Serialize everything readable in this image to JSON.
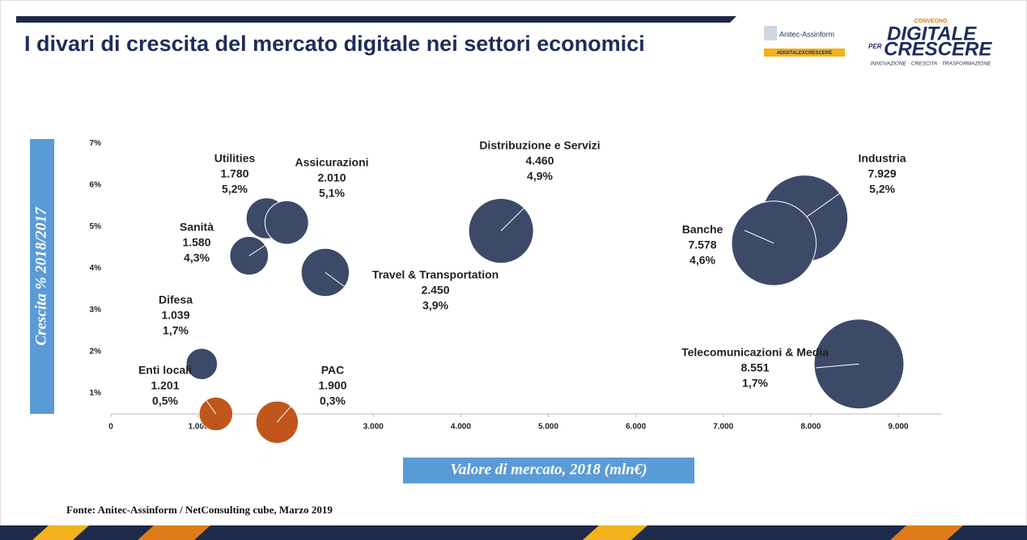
{
  "header": {
    "title": "I divari di crescita del mercato digitale nei settori economici",
    "logo_left": "Anitec-Assinform",
    "logo_left_tag": "#DIGITALEXCRESCERE",
    "logo_right_kicker": "CONVEGNO",
    "logo_right_line1": "DIGITALE",
    "logo_right_per": "PER",
    "logo_right_line2": "CRESCERE",
    "logo_right_tagline": "INNOVAZIONE · CRESCITA · TRASFORMAZIONE"
  },
  "chart_data": {
    "type": "bubble",
    "x_label": "Valore di mercato, 2018 (mln€)",
    "y_label": "Crescita % 2018/2017",
    "categories": [
      "Utilities",
      "Assicurazioni",
      "Distribuzione e Servizi",
      "Industria",
      "Sanità",
      "Banche",
      "Travel & Transportation",
      "Difesa",
      "Telecomunicazioni & Media",
      "Enti locali",
      "PAC"
    ],
    "x": [
      1780,
      2010,
      4460,
      7929,
      1580,
      7578,
      2450,
      1039,
      8551,
      1201,
      1900
    ],
    "x_labels": [
      "1.780",
      "2.010",
      "4.460",
      "7.929",
      "1.580",
      "7.578",
      "2.450",
      "1.039",
      "8.551",
      "1.201",
      "1.900"
    ],
    "values": [
      5.2,
      5.1,
      4.9,
      5.2,
      4.3,
      4.6,
      3.9,
      1.7,
      1.7,
      0.5,
      0.3
    ],
    "value_labels": [
      "5,2%",
      "5,1%",
      "4,9%",
      "5,2%",
      "4,3%",
      "4,6%",
      "3,9%",
      "1,7%",
      "1,7%",
      "0,5%",
      "0,3%"
    ],
    "colors": [
      "#3c4a67",
      "#3c4a67",
      "#3c4a67",
      "#3c4a67",
      "#3c4a67",
      "#3c4a67",
      "#3c4a67",
      "#3c4a67",
      "#3c4a67",
      "#c0561b",
      "#c0561b"
    ],
    "xlim": [
      0,
      9500
    ],
    "xticks": [
      0,
      {
        "value": 1000,
        "label": "1.000"
      },
      {
        "value": 2000,
        "label": "2.000"
      },
      {
        "value": 3000,
        "label": "3.000"
      },
      {
        "value": 4000,
        "label": "4.000"
      },
      {
        "value": 5000,
        "label": "5.000"
      },
      {
        "value": 6000,
        "label": "6.000"
      },
      {
        "value": 7000,
        "label": "7.000"
      },
      {
        "value": 8000,
        "label": "8.000"
      },
      {
        "value": 9000,
        "label": "9.000"
      }
    ],
    "ylim": [
      0.5,
      7.3
    ],
    "yticks": [
      {
        "value": 1,
        "label": "1%"
      },
      {
        "value": 2,
        "label": "2%"
      },
      {
        "value": 3,
        "label": "3%"
      },
      {
        "value": 4,
        "label": "4%"
      },
      {
        "value": 5,
        "label": "5%"
      },
      {
        "value": 6,
        "label": "6%"
      },
      {
        "value": 7,
        "label": "7%"
      }
    ],
    "source": "Fonte: Anitec-Assinform / NetConsulting cube, Marzo  2019"
  }
}
